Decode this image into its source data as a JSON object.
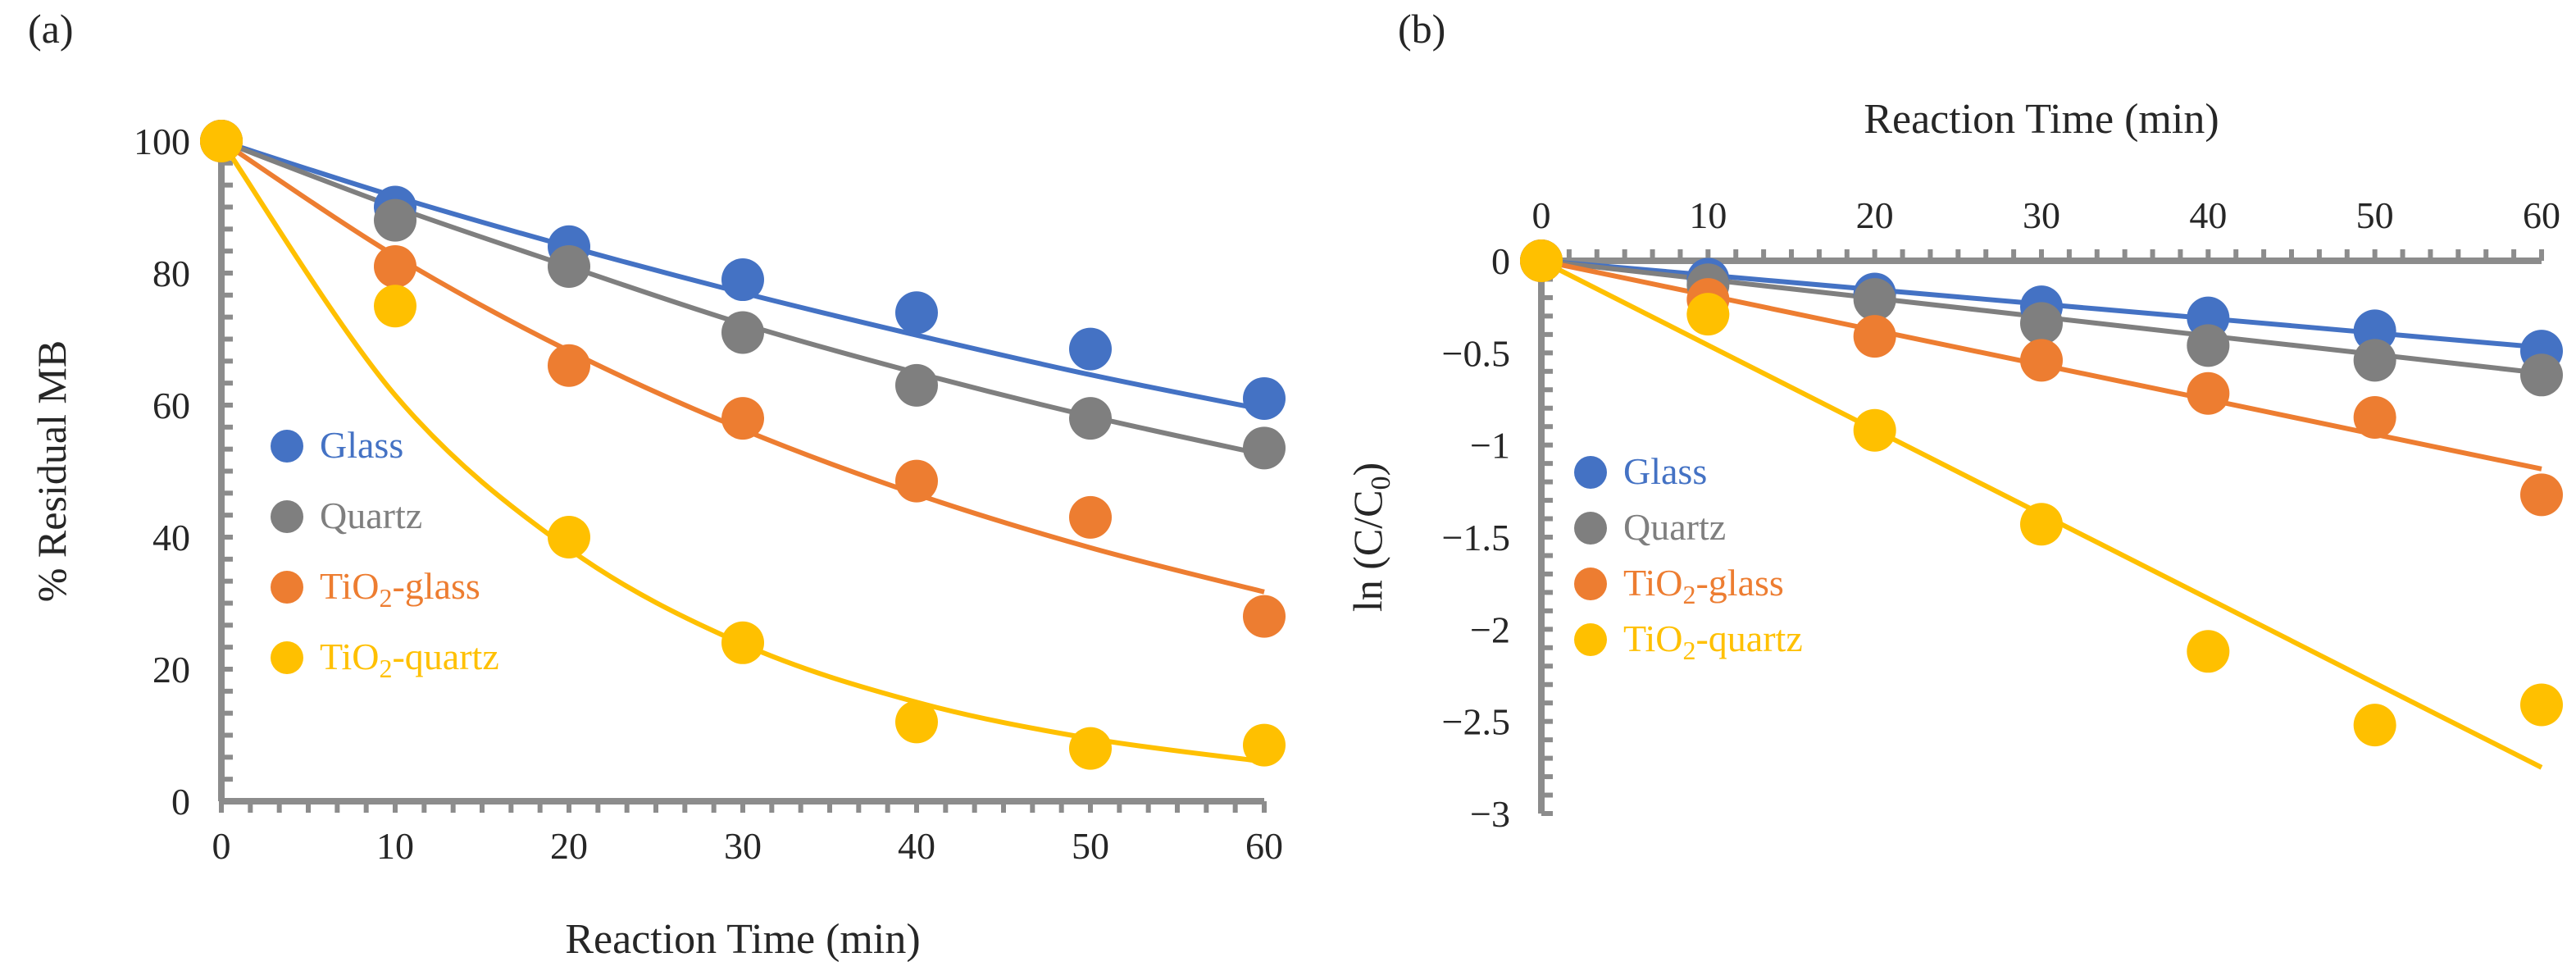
{
  "chart_data": [
    {
      "panel_label": "(a)",
      "type": "scatter",
      "title": "",
      "xlabel": "Reaction Time  (min)",
      "ylabel": "% Residual MB",
      "xlim": [
        0,
        60
      ],
      "ylim": [
        0,
        100
      ],
      "xticks": [
        0,
        10,
        20,
        30,
        40,
        50,
        60
      ],
      "yticks": [
        0,
        20,
        40,
        60,
        80,
        100
      ],
      "x_axis_position": "bottom",
      "legend": "center-left",
      "x": [
        0,
        10,
        20,
        30,
        40,
        50,
        60
      ],
      "series": [
        {
          "name": "Glass",
          "label_main": "Glass",
          "label_sub": "",
          "label_rest": "",
          "color": "#4472C4",
          "values": [
            100,
            90,
            84,
            79,
            74,
            68.5,
            61
          ],
          "fit": [
            100,
            91.6,
            84,
            77,
            70.6,
            64.6,
            59.3
          ]
        },
        {
          "name": "Quartz",
          "label_main": "Quartz",
          "label_sub": "",
          "label_rest": "",
          "color": "#7F7F7F",
          "values": [
            100,
            88,
            81,
            71,
            63,
            58,
            53.5
          ],
          "fit": [
            100,
            90,
            81,
            72.3,
            64.9,
            58.3,
            52.5
          ]
        },
        {
          "name": "TiO2-glass",
          "label_main": "TiO",
          "label_sub": "2",
          "label_rest": "-glass",
          "color": "#ED7D31",
          "values": [
            100,
            81,
            66,
            58,
            48.5,
            43,
            28
          ],
          "fit": [
            100,
            82.6,
            68.2,
            56.3,
            46.5,
            38.4,
            31.7
          ]
        },
        {
          "name": "TiO2-quartz",
          "label_main": "TiO",
          "label_sub": "2",
          "label_rest": "-quartz",
          "color": "#FFC000",
          "values": [
            100,
            75,
            40,
            24,
            12,
            8,
            8.5
          ],
          "fit": [
            100,
            61.5,
            38.2,
            23.8,
            15,
            9.5,
            6
          ]
        }
      ]
    },
    {
      "panel_label": "(b)",
      "type": "scatter",
      "title": "",
      "xlabel": "Reaction Time  (min)",
      "ylabel_main": "ln (C/C",
      "ylabel_sub": "0",
      "ylabel_end": ")",
      "xlim": [
        0,
        60
      ],
      "ylim": [
        -3,
        0
      ],
      "xticks": [
        0,
        10,
        20,
        30,
        40,
        50,
        60
      ],
      "yticks": [
        0,
        -0.5,
        -1,
        -1.5,
        -2,
        -2.5,
        -3
      ],
      "x_axis_position": "top",
      "legend": "center-left",
      "x": [
        0,
        10,
        20,
        30,
        40,
        50,
        60
      ],
      "series": [
        {
          "name": "Glass",
          "label_main": "Glass",
          "label_sub": "",
          "label_rest": "",
          "color": "#4472C4",
          "values": [
            0,
            -0.1,
            -0.18,
            -0.25,
            -0.31,
            -0.38,
            -0.49
          ],
          "fit": [
            0,
            -0.078,
            -0.157,
            -0.235,
            -0.313,
            -0.392,
            -0.47
          ]
        },
        {
          "name": "Quartz",
          "label_main": "Quartz",
          "label_sub": "",
          "label_rest": "",
          "color": "#7F7F7F",
          "values": [
            0,
            -0.13,
            -0.21,
            -0.34,
            -0.46,
            -0.54,
            -0.62
          ],
          "fit": [
            0,
            -0.102,
            -0.203,
            -0.305,
            -0.407,
            -0.508,
            -0.61
          ]
        },
        {
          "name": "TiO2-glass",
          "label_main": "TiO",
          "label_sub": "2",
          "label_rest": "-glass",
          "color": "#ED7D31",
          "values": [
            0,
            -0.21,
            -0.41,
            -0.54,
            -0.72,
            -0.85,
            -1.27
          ],
          "fit": [
            0,
            -0.188,
            -0.377,
            -0.565,
            -0.753,
            -0.942,
            -1.13
          ]
        },
        {
          "name": "TiO2-quartz",
          "label_main": "TiO",
          "label_sub": "2",
          "label_rest": "-quartz",
          "color": "#FFC000",
          "values": [
            0,
            -0.29,
            -0.92,
            -1.43,
            -2.12,
            -2.52,
            -2.41
          ],
          "fit": [
            0,
            -0.458,
            -0.917,
            -1.375,
            -1.833,
            -2.292,
            -2.75
          ]
        }
      ]
    }
  ]
}
